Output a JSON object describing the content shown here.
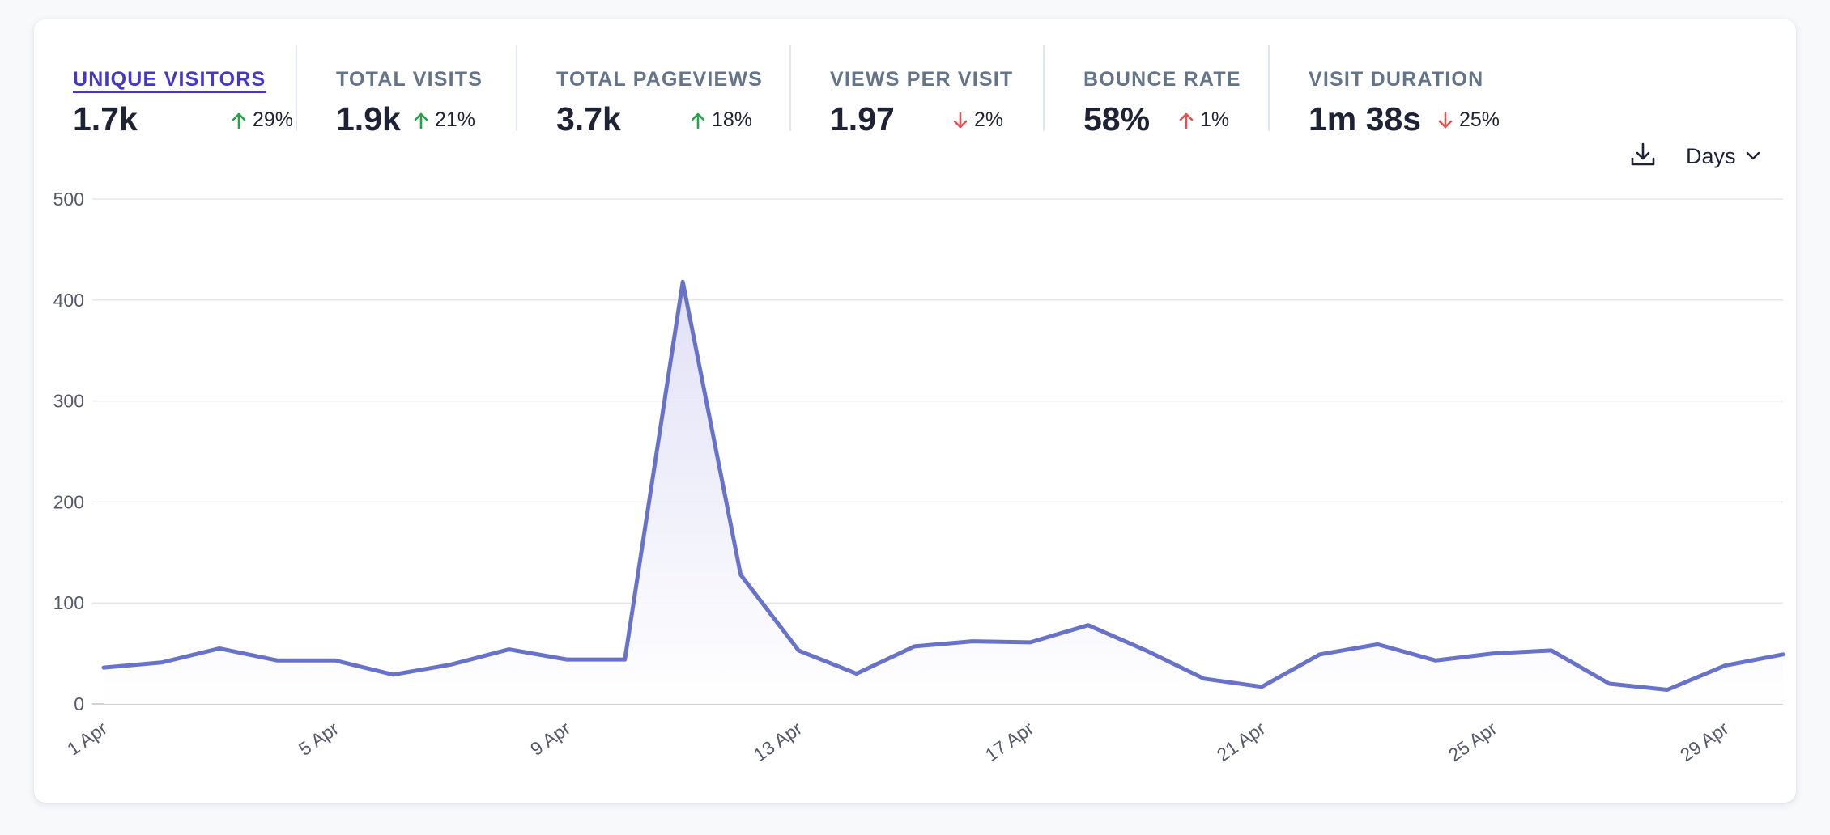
{
  "metrics": [
    {
      "label": "UNIQUE VISITORS",
      "value": "1.7k",
      "change": "29%",
      "direction": "up",
      "active": true
    },
    {
      "label": "TOTAL VISITS",
      "value": "1.9k",
      "change": "21%",
      "direction": "up",
      "active": false
    },
    {
      "label": "TOTAL PAGEVIEWS",
      "value": "3.7k",
      "change": "18%",
      "direction": "up",
      "active": false
    },
    {
      "label": "VIEWS PER VISIT",
      "value": "1.97",
      "change": "2%",
      "direction": "down",
      "active": false
    },
    {
      "label": "BOUNCE RATE",
      "value": "58%",
      "change": "1%",
      "direction": "up",
      "active": false
    },
    {
      "label": "VISIT DURATION",
      "value": "1m 38s",
      "change": "25%",
      "direction": "down",
      "active": false
    }
  ],
  "toolbar": {
    "download_icon": "download-icon",
    "interval_label": "Days",
    "interval_icon": "chevron-down-icon"
  },
  "colors": {
    "line": "#6872c8",
    "fill_top": "#dcdcf5",
    "up": "#22a447",
    "down": "#e05252",
    "active_label": "#4338ca",
    "grid": "#e5e7eb"
  },
  "chart_data": {
    "type": "line",
    "title": "",
    "xlabel": "",
    "ylabel": "",
    "ylim": [
      0,
      500
    ],
    "yticks": [
      "0",
      "100",
      "200",
      "300",
      "400",
      "500"
    ],
    "x": [
      "1 Apr",
      "2 Apr",
      "3 Apr",
      "4 Apr",
      "5 Apr",
      "6 Apr",
      "7 Apr",
      "8 Apr",
      "9 Apr",
      "10 Apr",
      "11 Apr",
      "12 Apr",
      "13 Apr",
      "14 Apr",
      "15 Apr",
      "16 Apr",
      "17 Apr",
      "18 Apr",
      "19 Apr",
      "20 Apr",
      "21 Apr",
      "22 Apr",
      "23 Apr",
      "24 Apr",
      "25 Apr",
      "26 Apr",
      "27 Apr",
      "28 Apr",
      "29 Apr",
      "30 Apr"
    ],
    "xtick_labels": [
      "1 Apr",
      "5 Apr",
      "9 Apr",
      "13 Apr",
      "17 Apr",
      "21 Apr",
      "25 Apr",
      "29 Apr"
    ],
    "series": [
      {
        "values": [
          36,
          41,
          55,
          43,
          43,
          29,
          39,
          54,
          44,
          44,
          418,
          128,
          53,
          30,
          57,
          62,
          61,
          78,
          53,
          25,
          17,
          49,
          59,
          43,
          50,
          53,
          20,
          14,
          38,
          49
        ]
      }
    ],
    "grid": true,
    "legend": "none"
  }
}
